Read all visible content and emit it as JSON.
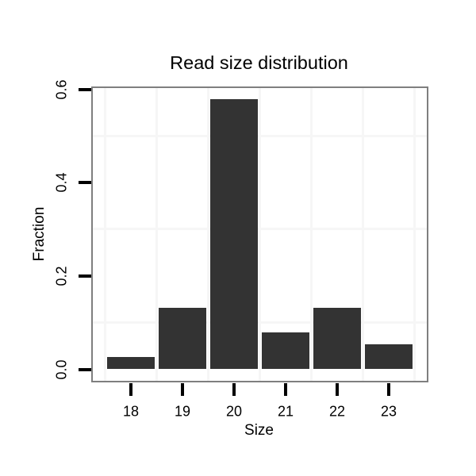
{
  "chart_data": {
    "type": "bar",
    "title": "Read size distribution",
    "xlabel": "Size",
    "ylabel": "Fraction",
    "categories": [
      "18",
      "19",
      "20",
      "21",
      "22",
      "23"
    ],
    "values": [
      0.025,
      0.131,
      0.579,
      0.079,
      0.131,
      0.052
    ],
    "y_tick_labels": [
      "0.0",
      "0.2",
      "0.4",
      "0.6"
    ],
    "y_tick_values": [
      0.0,
      0.2,
      0.4,
      0.6
    ],
    "y_minor_gridlines": [
      0.1,
      0.3,
      0.5
    ],
    "ylim": [
      -0.025,
      0.605
    ],
    "grid": "minor-only",
    "legend": "none",
    "colors": {
      "bar_fill": "#333333",
      "panel_border": "#7f7f7f",
      "panel_background": "#ffffff",
      "grid_minor": "#f6f6f6",
      "tick_mark": "#000000",
      "text": "#000000"
    }
  }
}
